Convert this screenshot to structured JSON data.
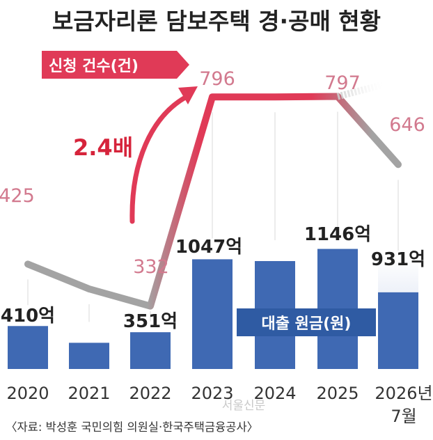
{
  "title": "보금자리론 담보주택 경·공매 현황",
  "source": "〈자료: 박성훈 국민의힘 의원실·한국주택금융공사〉",
  "watermark": "서울신문",
  "colors": {
    "bar": "#3f69b3",
    "bar_partial": "#c7d3ea",
    "line_gray": "#a3a3a3",
    "line_red": "#e03a57",
    "count_label": "#d2798e",
    "emphasis": "#d6243b",
    "legend_box": "#2f5ba3",
    "text_dark": "#222222"
  },
  "chart_data": [
    {
      "type": "bar",
      "name": "대출 원금(원)",
      "legend_label": "대출 원금(원)",
      "categories": [
        "2020",
        "2021",
        "2022",
        "2023",
        "2024",
        "2025",
        "2026년\n7월"
      ],
      "values": [
        410,
        250,
        351,
        1047,
        1030,
        1146,
        931
      ],
      "value_labels": [
        "410억",
        "",
        "351억",
        "1047억",
        "",
        "1146억",
        "931억"
      ],
      "unit": "억원",
      "partial_last": true
    },
    {
      "type": "line",
      "name": "신청 건수(건)",
      "legend_label": "신청 건수(건)",
      "categories": [
        "2020",
        "2021",
        "2022",
        "2023",
        "2024",
        "2025",
        "2026년\n7월"
      ],
      "values": [
        425,
        370,
        332,
        796,
        796,
        797,
        646
      ],
      "value_labels": [
        "425",
        "",
        "332",
        "796",
        "",
        "797",
        "646"
      ],
      "annotation": "2.4배",
      "partial_last": true
    }
  ]
}
